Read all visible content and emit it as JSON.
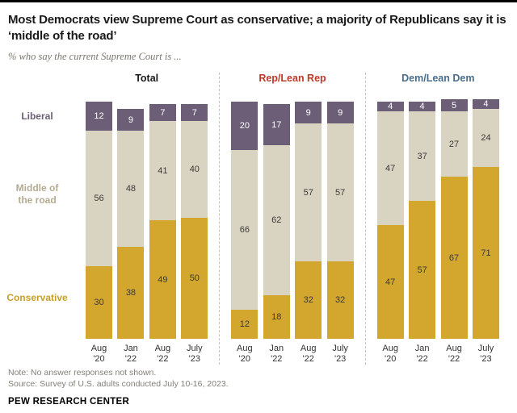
{
  "header": {
    "title": "Most Democrats view Supreme Court as conservative; a majority of Republicans say it is ‘middle of the road’",
    "subtitle": "% who say the current Supreme Court is ..."
  },
  "chart_data": {
    "type": "bar",
    "stacked": true,
    "value_unit": "%",
    "ylim": [
      0,
      100
    ],
    "legend_position": "left",
    "grid": false,
    "categories": [
      "Aug '20",
      "Jan '22",
      "Aug '22",
      "July '23"
    ],
    "segments": [
      {
        "key": "liberal",
        "label": "Liberal",
        "color": "#6b5e76",
        "text_color": "#ffffff"
      },
      {
        "key": "middle",
        "label": "Middle of the road",
        "color": "#d9d3c1",
        "text_color": "#3a3a3a"
      },
      {
        "key": "conservative",
        "label": "Conservative",
        "color": "#d3a62d",
        "text_color": "#3a3a3a"
      }
    ],
    "axis_labels": {
      "liberal": "Liberal",
      "middle": "Middle of\nthe road",
      "conservative": "Conservative"
    },
    "panels": [
      {
        "label": "Total",
        "color": "#1a1a1a",
        "values": {
          "liberal": [
            12,
            9,
            7,
            7
          ],
          "middle": [
            56,
            48,
            41,
            40
          ],
          "conservative": [
            30,
            38,
            49,
            50
          ]
        }
      },
      {
        "label": "Rep/Lean Rep",
        "color": "#bf3927",
        "values": {
          "liberal": [
            20,
            17,
            9,
            9
          ],
          "middle": [
            66,
            62,
            57,
            57
          ],
          "conservative": [
            12,
            18,
            32,
            32
          ]
        }
      },
      {
        "label": "Dem/Lean Dem",
        "color": "#4a6d8a",
        "values": {
          "liberal": [
            4,
            4,
            5,
            4
          ],
          "middle": [
            47,
            37,
            27,
            24
          ],
          "conservative": [
            47,
            57,
            67,
            71
          ]
        }
      }
    ]
  },
  "footer": {
    "note": "Note: No answer responses not shown.",
    "source": "Source: Survey of U.S. adults conducted July 10-16, 2023.",
    "brand": "PEW RESEARCH CENTER"
  }
}
